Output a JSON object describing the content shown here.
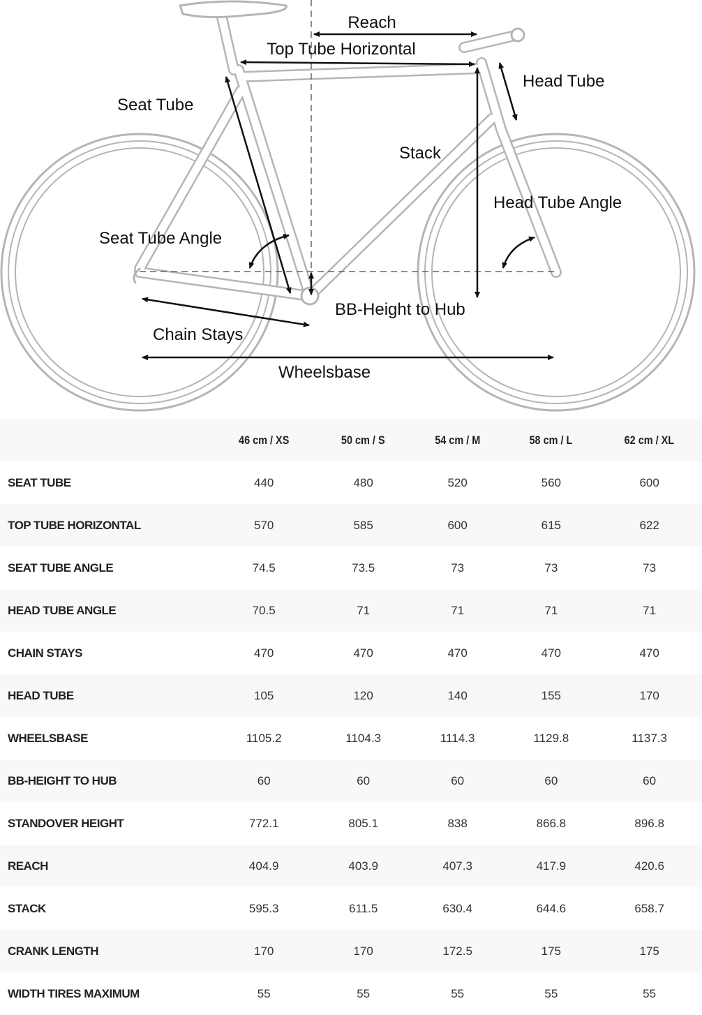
{
  "diagram": {
    "labels": {
      "reach": "Reach",
      "top_tube_horizontal": "Top Tube Horizontal",
      "head_tube": "Head Tube",
      "seat_tube": "Seat Tube",
      "stack": "Stack",
      "head_tube_angle": "Head Tube Angle",
      "seat_tube_angle": "Seat Tube Angle",
      "bb_height_to_hub": "BB-Height to Hub",
      "chain_stays": "Chain Stays",
      "wheelsbase": "Wheelsbase"
    }
  },
  "table": {
    "headers": [
      "",
      "46 cm / XS",
      "50 cm / S",
      "54 cm / M",
      "58 cm / L",
      "62 cm / XL"
    ],
    "rows": [
      {
        "label": "SEAT TUBE",
        "values": [
          "440",
          "480",
          "520",
          "560",
          "600"
        ]
      },
      {
        "label": "TOP TUBE HORIZONTAL",
        "values": [
          "570",
          "585",
          "600",
          "615",
          "622"
        ]
      },
      {
        "label": "SEAT TUBE ANGLE",
        "values": [
          "74.5",
          "73.5",
          "73",
          "73",
          "73"
        ]
      },
      {
        "label": "HEAD TUBE ANGLE",
        "values": [
          "70.5",
          "71",
          "71",
          "71",
          "71"
        ]
      },
      {
        "label": "CHAIN STAYS",
        "values": [
          "470",
          "470",
          "470",
          "470",
          "470"
        ]
      },
      {
        "label": "HEAD TUBE",
        "values": [
          "105",
          "120",
          "140",
          "155",
          "170"
        ]
      },
      {
        "label": "WHEELSBASE",
        "values": [
          "1105.2",
          "1104.3",
          "1114.3",
          "1129.8",
          "1137.3"
        ]
      },
      {
        "label": "BB-HEIGHT TO HUB",
        "values": [
          "60",
          "60",
          "60",
          "60",
          "60"
        ]
      },
      {
        "label": "STANDOVER HEIGHT",
        "values": [
          "772.1",
          "805.1",
          "838",
          "866.8",
          "896.8"
        ]
      },
      {
        "label": "REACH",
        "values": [
          "404.9",
          "403.9",
          "407.3",
          "417.9",
          "420.6"
        ]
      },
      {
        "label": "STACK",
        "values": [
          "595.3",
          "611.5",
          "630.4",
          "644.6",
          "658.7"
        ]
      },
      {
        "label": "CRANK LENGTH",
        "values": [
          "170",
          "170",
          "172.5",
          "175",
          "175"
        ]
      },
      {
        "label": "WIDTH TIRES MAXIMUM",
        "values": [
          "55",
          "55",
          "55",
          "55",
          "55"
        ]
      }
    ]
  }
}
